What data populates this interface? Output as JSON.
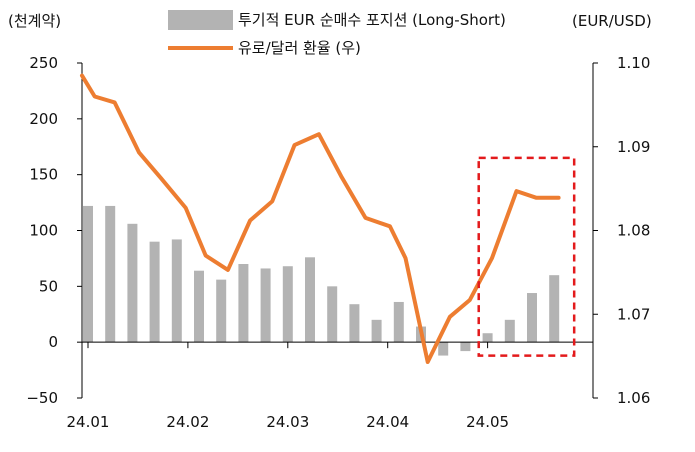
{
  "chart_data": {
    "type": "bar+line",
    "legend": {
      "position": "top-center",
      "entries": [
        {
          "label": "투기적 EUR  순매수 포지션 (Long-Short)",
          "marker": "bar",
          "color": "#b3b3b3"
        },
        {
          "label": "유로/달러 환율 (우)",
          "marker": "line",
          "color": "#ed7d31"
        }
      ]
    },
    "left_axis": {
      "label": "(천계약)",
      "ylim": [
        -50,
        250
      ],
      "ticks": [
        250,
        200,
        150,
        100,
        50,
        0,
        -50
      ],
      "tick_labels": [
        "250",
        "200",
        "150",
        "100",
        "50",
        "0",
        "−50"
      ]
    },
    "right_axis": {
      "label": "(EUR/USD)",
      "ylim": [
        1.06,
        1.1
      ],
      "ticks": [
        1.1,
        1.09,
        1.08,
        1.07,
        1.06
      ],
      "tick_labels": [
        "1.10",
        "1.09",
        "1.08",
        "1.07",
        "1.06"
      ]
    },
    "x_axis": {
      "tick_labels": [
        "24.01",
        "24.02",
        "24.03",
        "24.04",
        "24.05"
      ],
      "tick_positions": [
        0,
        4.5,
        9,
        13.5,
        18
      ]
    },
    "grid": false,
    "series": [
      {
        "name": "투기적 EUR  순매수 포지션 (Long-Short)",
        "axis": "left",
        "type": "bar",
        "color": "#b3b3b3",
        "values": [
          122,
          122,
          106,
          90,
          92,
          64,
          56,
          70,
          66,
          68,
          76,
          50,
          34,
          20,
          36,
          14,
          -12,
          -8,
          8,
          20,
          44,
          60
        ]
      },
      {
        "name": "유로/달러 환율 (우)",
        "axis": "right",
        "type": "line",
        "color": "#ed7d31",
        "x": [
          -0.3,
          0.3,
          1.2,
          2.3,
          3.3,
          4.4,
          5.3,
          6.3,
          7.3,
          8.3,
          9.3,
          10.4,
          11.4,
          12.5,
          13.6,
          14.3,
          15.3,
          16.3,
          17.2,
          18.2,
          19.3,
          20.2,
          21.2
        ],
        "values": [
          1.0985,
          1.096,
          1.0953,
          1.0893,
          1.0862,
          1.0827,
          1.077,
          1.0753,
          1.0812,
          1.0835,
          1.0902,
          1.0915,
          1.0865,
          1.0815,
          1.0805,
          1.0767,
          1.0643,
          1.0697,
          1.0717,
          1.0767,
          1.0847,
          1.0839,
          1.0839
        ]
      }
    ],
    "annotation": {
      "type": "dashed-box",
      "color": "#e31a1c",
      "x_range": [
        17.6,
        21.9
      ],
      "left_range": [
        -12,
        165
      ]
    }
  }
}
